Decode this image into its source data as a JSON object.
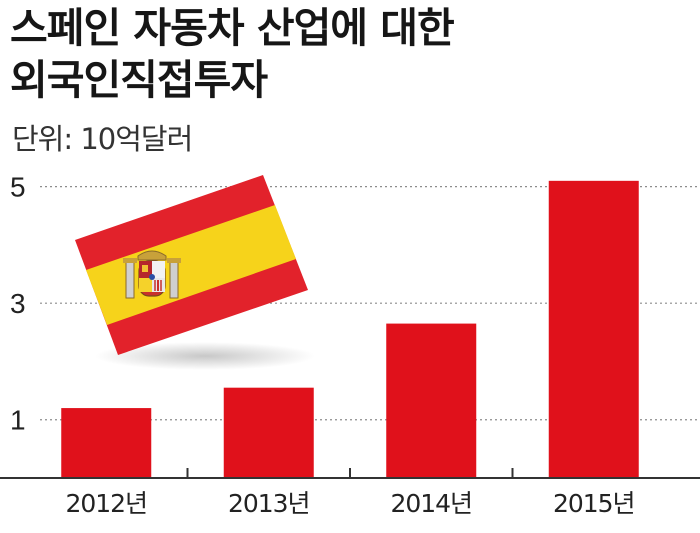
{
  "chart_data": {
    "type": "bar",
    "title": [
      "스페인 자동차 산업에 대한",
      "외국인직접투자"
    ],
    "unit_label": "단위: 10억달러",
    "categories": [
      "2012년",
      "2013년",
      "2014년",
      "2015년"
    ],
    "values": [
      1.2,
      1.55,
      2.65,
      5.1
    ],
    "yticks": [
      1,
      3,
      5
    ],
    "ylim": [
      0,
      5.2
    ],
    "grid": "dotted horizontal",
    "bar_color": "#e0111b"
  }
}
